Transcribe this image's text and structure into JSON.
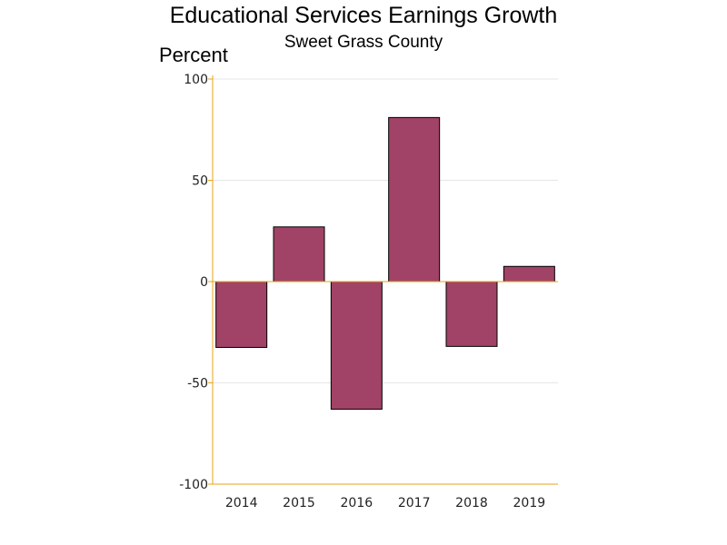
{
  "chart_data": {
    "type": "bar",
    "title": "Educational Services Earnings Growth",
    "subtitle": "Sweet Grass County",
    "ylabel": "Percent",
    "xlabel": "",
    "categories": [
      "2014",
      "2015",
      "2016",
      "2017",
      "2018",
      "2019"
    ],
    "values": [
      -32.5,
      27,
      -63,
      81,
      -32,
      7.5
    ],
    "ylim": [
      -100,
      100
    ],
    "yticks": [
      -100,
      -50,
      0,
      50,
      100
    ],
    "grid": true,
    "legend": "none",
    "colors": {
      "bar": "#a04366",
      "axis": "#e8a317",
      "grid": "#e6e6e6"
    }
  }
}
